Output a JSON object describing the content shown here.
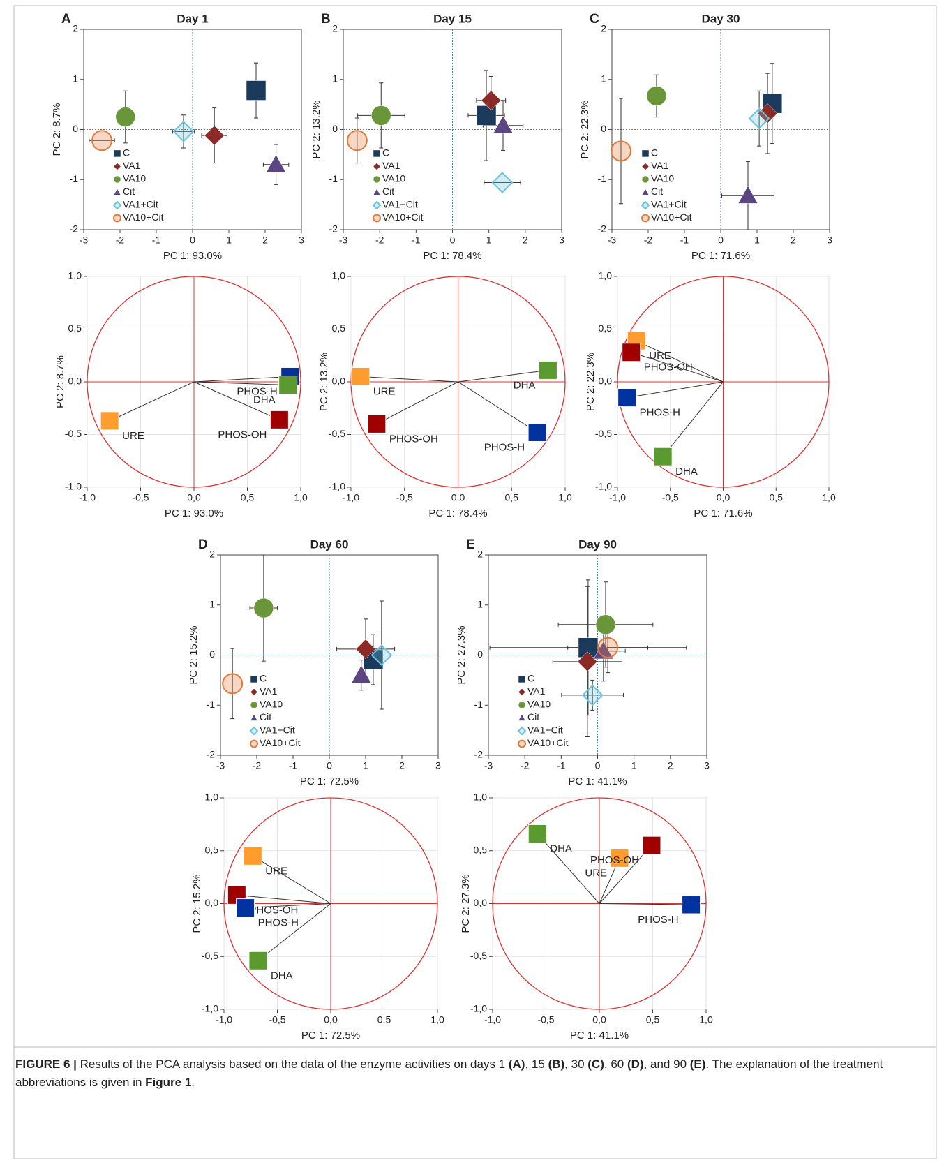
{
  "chart_data": [
    {
      "type": "scatter",
      "panel": "A",
      "title": "Day 1",
      "xlabel": "PC 1:  93.0%",
      "ylabel": "PC 2:  8.7%",
      "xlim": [
        -3,
        3
      ],
      "ylim": [
        -2,
        2
      ],
      "xticks": [
        -3,
        -2,
        -1,
        0,
        1,
        2,
        3
      ],
      "yticks": [
        -2,
        -1,
        0,
        1,
        2
      ],
      "legend": "lower left",
      "series": [
        {
          "name": "C",
          "color": "#1b3a5c",
          "marker": "square",
          "x": 1.75,
          "y": 0.78,
          "x_err": 0,
          "y_err": 0.55
        },
        {
          "name": "VA1",
          "color": "#8b2a26",
          "marker": "diamond",
          "x": 0.6,
          "y": -0.12,
          "x_err": 0.35,
          "y_err": 0.55
        },
        {
          "name": "VA10",
          "color": "#6a963a",
          "marker": "circle",
          "x": -1.85,
          "y": 0.25,
          "x_err": 0,
          "y_err": 0.52
        },
        {
          "name": "Cit",
          "color": "#5c4681",
          "marker": "triangle",
          "x": 2.3,
          "y": -0.7,
          "x_err": 0.35,
          "y_err": 0.4
        },
        {
          "name": "VA1+Cit",
          "color": "#6cc3db",
          "marker": "open-diamond",
          "x": -0.25,
          "y": -0.04,
          "x_err": 0.3,
          "y_err": 0.33
        },
        {
          "name": "VA10+Cit",
          "color": "#e07a3c",
          "marker": "open-circle",
          "x": -2.5,
          "y": -0.22,
          "x_err": 0.35,
          "y_err": 0
        }
      ]
    },
    {
      "type": "scatter",
      "panel": "B",
      "title": "Day 15",
      "xlabel": "PC 1:  78.4%",
      "ylabel": "PC 2:  13.2%",
      "xlim": [
        -3,
        3
      ],
      "ylim": [
        -2,
        2
      ],
      "xticks": [
        -3,
        -2,
        -1,
        0,
        1,
        2,
        3
      ],
      "yticks": [
        -2,
        -1,
        0,
        1,
        2
      ],
      "legend": "lower left",
      "series": [
        {
          "name": "C",
          "color": "#1b3a5c",
          "marker": "square",
          "x": 0.93,
          "y": 0.28,
          "x_err": 0.5,
          "y_err": 0.9
        },
        {
          "name": "VA1",
          "color": "#8b2a26",
          "marker": "diamond",
          "x": 1.06,
          "y": 0.58,
          "x_err": 0.4,
          "y_err": 0.48
        },
        {
          "name": "VA10",
          "color": "#6a963a",
          "marker": "circle",
          "x": -1.96,
          "y": 0.28,
          "x_err": 0.65,
          "y_err": 0.65
        },
        {
          "name": "Cit",
          "color": "#5c4681",
          "marker": "triangle",
          "x": 1.39,
          "y": 0.08,
          "x_err": 0.55,
          "y_err": 0.5
        },
        {
          "name": "VA1+Cit",
          "color": "#6cc3db",
          "marker": "open-diamond",
          "x": 1.37,
          "y": -1.06,
          "x_err": 0.5,
          "y_err": 0
        },
        {
          "name": "VA10+Cit",
          "color": "#e07a3c",
          "marker": "open-circle",
          "x": -2.62,
          "y": -0.22,
          "x_err": 0,
          "y_err": 0.45
        }
      ]
    },
    {
      "type": "scatter",
      "panel": "C",
      "title": "Day 30",
      "xlabel": "PC 1:  71.6%",
      "ylabel": "PC 2:  22.3%",
      "xlim": [
        -3,
        3
      ],
      "ylim": [
        -2,
        2
      ],
      "xticks": [
        -3,
        -2,
        -1,
        0,
        1,
        2,
        3
      ],
      "yticks": [
        -2,
        -1,
        0,
        1,
        2
      ],
      "legend": "lower left",
      "series": [
        {
          "name": "C",
          "color": "#1b3a5c",
          "marker": "square",
          "x": 1.42,
          "y": 0.52,
          "x_err": 0,
          "y_err": 0.8
        },
        {
          "name": "VA1",
          "color": "#8b2a26",
          "marker": "diamond",
          "x": 1.29,
          "y": 0.32,
          "x_err": 0,
          "y_err": 0.8
        },
        {
          "name": "VA10",
          "color": "#6a963a",
          "marker": "circle",
          "x": -1.77,
          "y": 0.67,
          "x_err": 0,
          "y_err": 0.42
        },
        {
          "name": "Cit",
          "color": "#5c4681",
          "marker": "triangle",
          "x": 0.75,
          "y": -1.32,
          "x_err": 0.72,
          "y_err": 0.68
        },
        {
          "name": "VA1+Cit",
          "color": "#6cc3db",
          "marker": "open-diamond",
          "x": 1.06,
          "y": 0.22,
          "x_err": 0,
          "y_err": 0.55
        },
        {
          "name": "VA10+Cit",
          "color": "#e07a3c",
          "marker": "open-circle",
          "x": -2.75,
          "y": -0.43,
          "x_err": 0,
          "y_err": 1.05
        }
      ]
    },
    {
      "type": "biplot",
      "xlabel": "PC 1:  93.0%",
      "ylabel": "PC 2:  8.7%",
      "xlim": [
        -1,
        1
      ],
      "ylim": [
        -1,
        1
      ],
      "xticks": [
        {
          "value": -1,
          "label": "-1,0"
        },
        {
          "value": -0.5,
          "label": "-0,5"
        },
        {
          "value": 0,
          "label": "0,0"
        },
        {
          "value": 0.5,
          "label": "0,5"
        },
        {
          "value": 1,
          "label": "1,0"
        }
      ],
      "yticks": [
        {
          "value": -1,
          "label": "-1,0"
        },
        {
          "value": -0.5,
          "label": "-0,5"
        },
        {
          "value": 0,
          "label": "0,0"
        },
        {
          "value": 0.5,
          "label": "0,5"
        },
        {
          "value": 1,
          "label": "1,0"
        }
      ],
      "series": [
        {
          "name": "PHOS-H",
          "color": "#0033a0",
          "x": 0.9,
          "y": 0.05
        },
        {
          "name": "DHA",
          "color": "#5a9a2e",
          "x": 0.88,
          "y": -0.03
        },
        {
          "name": "PHOS-OH",
          "color": "#a00000",
          "x": 0.8,
          "y": -0.36
        },
        {
          "name": "URE",
          "color": "#ff9c2e",
          "x": -0.79,
          "y": -0.37
        }
      ]
    },
    {
      "type": "biplot",
      "xlabel": "PC 1:  78.4%",
      "ylabel": "PC 2:  13.2%",
      "xlim": [
        -1,
        1
      ],
      "ylim": [
        -1,
        1
      ],
      "xticks": [
        {
          "value": -1,
          "label": "-1,0"
        },
        {
          "value": -0.5,
          "label": "-0,5"
        },
        {
          "value": 0,
          "label": "0,0"
        },
        {
          "value": 0.5,
          "label": "0,5"
        },
        {
          "value": 1,
          "label": "1,0"
        }
      ],
      "yticks": [
        {
          "value": -1,
          "label": "-1,0"
        },
        {
          "value": -0.5,
          "label": "-0,5"
        },
        {
          "value": 0,
          "label": "0,0"
        },
        {
          "value": 0.5,
          "label": "0,5"
        },
        {
          "value": 1,
          "label": "1,0"
        }
      ],
      "series": [
        {
          "name": "DHA",
          "color": "#5a9a2e",
          "x": 0.84,
          "y": 0.11
        },
        {
          "name": "URE",
          "color": "#ff9c2e",
          "x": -0.91,
          "y": 0.05
        },
        {
          "name": "PHOS-OH",
          "color": "#a00000",
          "x": -0.76,
          "y": -0.4
        },
        {
          "name": "PHOS-H",
          "color": "#0033a0",
          "x": 0.74,
          "y": -0.48
        }
      ]
    },
    {
      "type": "biplot",
      "xlabel": "PC 1:  71.6%",
      "ylabel": "PC 2:  22.3%",
      "xlim": [
        -1,
        1
      ],
      "ylim": [
        -1,
        1
      ],
      "xticks": [
        {
          "value": -1,
          "label": "-1,0"
        },
        {
          "value": -0.5,
          "label": "-0,5"
        },
        {
          "value": 0,
          "label": "0,0"
        },
        {
          "value": 0.5,
          "label": "0,5"
        },
        {
          "value": 1,
          "label": "1,0"
        }
      ],
      "yticks": [
        {
          "value": -1,
          "label": "-1,0"
        },
        {
          "value": -0.5,
          "label": "-0,5"
        },
        {
          "value": 0,
          "label": "0,0"
        },
        {
          "value": 0.5,
          "label": "0,5"
        },
        {
          "value": 1,
          "label": "1,0"
        }
      ],
      "series": [
        {
          "name": "URE",
          "color": "#ff9c2e",
          "x": -0.82,
          "y": 0.39
        },
        {
          "name": "PHOS-OH",
          "color": "#a00000",
          "x": -0.87,
          "y": 0.28
        },
        {
          "name": "PHOS-H",
          "color": "#0033a0",
          "x": -0.91,
          "y": -0.15
        },
        {
          "name": "DHA",
          "color": "#5a9a2e",
          "x": -0.57,
          "y": -0.71
        }
      ]
    },
    {
      "type": "scatter",
      "panel": "D",
      "title": "Day 60",
      "xlabel": "PC 1:  72.5%",
      "ylabel": "PC 2:  15.2%",
      "xlim": [
        -3,
        3
      ],
      "ylim": [
        -2,
        2
      ],
      "xticks": [
        -3,
        -2,
        -1,
        0,
        1,
        2,
        3
      ],
      "yticks": [
        -2,
        -1,
        0,
        1,
        2
      ],
      "legend": "lower left",
      "series": [
        {
          "name": "C",
          "color": "#1b3a5c",
          "marker": "square",
          "x": 1.21,
          "y": -0.09,
          "x_err": 0,
          "y_err": 0.5
        },
        {
          "name": "VA1",
          "color": "#8b2a26",
          "marker": "diamond",
          "x": 1.0,
          "y": 0.12,
          "x_err": 0.8,
          "y_err": 0.6
        },
        {
          "name": "VA10",
          "color": "#6a963a",
          "marker": "circle",
          "x": -1.81,
          "y": 0.94,
          "x_err": 0.38,
          "y_err": 1.06
        },
        {
          "name": "Cit",
          "color": "#5c4681",
          "marker": "triangle",
          "x": 0.88,
          "y": -0.4,
          "x_err": 0,
          "y_err": 0.3
        },
        {
          "name": "VA1+Cit",
          "color": "#6cc3db",
          "marker": "open-diamond",
          "x": 1.44,
          "y": 0.0,
          "x_err": 0,
          "y_err": 1.08
        },
        {
          "name": "VA10+Cit",
          "color": "#e07a3c",
          "marker": "open-circle",
          "x": -2.67,
          "y": -0.57,
          "x_err": 0,
          "y_err": 0.7
        }
      ]
    },
    {
      "type": "scatter",
      "panel": "E",
      "title": "Day 90",
      "xlabel": "PC 1:  41.1%",
      "ylabel": "PC 2:  27.3%",
      "xlim": [
        -3,
        3
      ],
      "ylim": [
        -2,
        2
      ],
      "xticks": [
        -3,
        -2,
        -1,
        0,
        1,
        2,
        3
      ],
      "yticks": [
        -2,
        -1,
        0,
        1,
        2
      ],
      "legend": "lower left",
      "series": [
        {
          "name": "C",
          "color": "#1b3a5c",
          "marker": "square",
          "x": -0.26,
          "y": 0.15,
          "x_err": 2.7,
          "y_err": 1.35
        },
        {
          "name": "VA1",
          "color": "#8b2a26",
          "marker": "diamond",
          "x": -0.28,
          "y": -0.13,
          "x_err": 0.95,
          "y_err": 1.5
        },
        {
          "name": "VA10",
          "color": "#6a963a",
          "marker": "circle",
          "x": 0.22,
          "y": 0.61,
          "x_err": 1.3,
          "y_err": 0.85
        },
        {
          "name": "Cit",
          "color": "#5c4681",
          "marker": "triangle",
          "x": 0.16,
          "y": 0.08,
          "x_err": 0.6,
          "y_err": 0.6
        },
        {
          "name": "VA1+Cit",
          "color": "#6cc3db",
          "marker": "open-diamond",
          "x": -0.14,
          "y": -0.8,
          "x_err": 0.85,
          "y_err": 0.3
        },
        {
          "name": "VA10+Cit",
          "color": "#e07a3c",
          "marker": "open-circle",
          "x": 0.28,
          "y": 0.15,
          "x_err": 1.1,
          "y_err": 0.5
        }
      ]
    },
    {
      "type": "biplot",
      "xlabel": "PC 1:  72.5%",
      "ylabel": "PC 2:  15.2%",
      "xlim": [
        -1,
        1
      ],
      "ylim": [
        -1,
        1
      ],
      "xticks": [
        {
          "value": -1,
          "label": "-1,0"
        },
        {
          "value": -0.5,
          "label": "-0,5"
        },
        {
          "value": 0,
          "label": "0,0"
        },
        {
          "value": 0.5,
          "label": "0,5"
        },
        {
          "value": 1,
          "label": "1,0"
        }
      ],
      "yticks": [
        {
          "value": -1,
          "label": "-1,0"
        },
        {
          "value": -0.5,
          "label": "-0,5"
        },
        {
          "value": 0,
          "label": "0,0"
        },
        {
          "value": 0.5,
          "label": "0,5"
        },
        {
          "value": 1,
          "label": "1,0"
        }
      ],
      "series": [
        {
          "name": "URE",
          "color": "#ff9c2e",
          "x": -0.73,
          "y": 0.45
        },
        {
          "name": "PHOS-OH",
          "color": "#a00000",
          "x": -0.88,
          "y": 0.08
        },
        {
          "name": "PHOS-H",
          "color": "#0033a0",
          "x": -0.8,
          "y": -0.04
        },
        {
          "name": "DHA",
          "color": "#5a9a2e",
          "x": -0.68,
          "y": -0.54
        }
      ]
    },
    {
      "type": "biplot",
      "xlabel": "PC 1:  41.1%",
      "ylabel": "PC 2:  27.3%",
      "xlim": [
        -1,
        1
      ],
      "ylim": [
        -1,
        1
      ],
      "xticks": [
        {
          "value": -1,
          "label": "-1,0"
        },
        {
          "value": -0.5,
          "label": "-0,5"
        },
        {
          "value": 0,
          "label": "0,0"
        },
        {
          "value": 0.5,
          "label": "0,5"
        },
        {
          "value": 1,
          "label": "1,0"
        }
      ],
      "yticks": [
        {
          "value": -1,
          "label": "-1,0"
        },
        {
          "value": -0.5,
          "label": "-0,5"
        },
        {
          "value": 0,
          "label": "0,0"
        },
        {
          "value": 0.5,
          "label": "0,5"
        },
        {
          "value": 1,
          "label": "1,0"
        }
      ],
      "series": [
        {
          "name": "DHA",
          "color": "#5a9a2e",
          "x": -0.58,
          "y": 0.66
        },
        {
          "name": "URE",
          "color": "#ff9c2e",
          "x": 0.19,
          "y": 0.43
        },
        {
          "name": "PHOS-OH",
          "color": "#a00000",
          "x": 0.49,
          "y": 0.55
        },
        {
          "name": "PHOS-H",
          "color": "#0033a0",
          "x": 0.86,
          "y": -0.01
        }
      ]
    }
  ],
  "caption": [
    {
      "text": "FIGURE 6 | ",
      "bold": true
    },
    {
      "text": "Results of the PCA analysis based on the data of the enzyme activities on days 1 ",
      "bold": false
    },
    {
      "text": "(A)",
      "bold": true
    },
    {
      "text": ", 15 ",
      "bold": false
    },
    {
      "text": "(B)",
      "bold": true
    },
    {
      "text": ", 30 ",
      "bold": false
    },
    {
      "text": "(C)",
      "bold": true
    },
    {
      "text": ", 60 ",
      "bold": false
    },
    {
      "text": "(D)",
      "bold": true
    },
    {
      "text": ", and 90 ",
      "bold": false
    },
    {
      "text": "(E)",
      "bold": true
    },
    {
      "text": ". The explanation of the treatment abbreviations is given in ",
      "bold": false
    },
    {
      "text": "Figure 1",
      "bold": true
    },
    {
      "text": ".",
      "bold": false
    }
  ]
}
